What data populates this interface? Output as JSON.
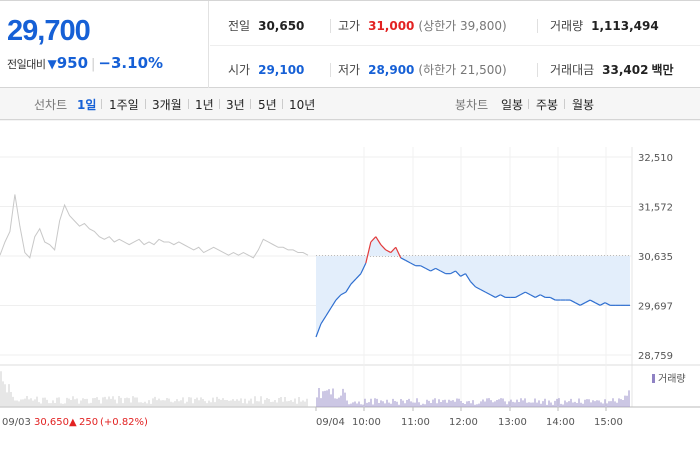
{
  "quote": {
    "price": "29,700",
    "change_label": "전일대비",
    "change_arrow": "▼",
    "change_abs": "950",
    "change_pct": "−3.10%",
    "prev_close_label": "전일",
    "prev_close": "30,650",
    "high_label": "고가",
    "high": "31,000",
    "upper_limit": "(상한가 39,800)",
    "volume_label": "거래량",
    "volume": "1,113,494",
    "open_label": "시가",
    "open": "29,100",
    "low_label": "저가",
    "low": "28,900",
    "lower_limit": "(하한가 21,500)",
    "amount_label": "거래대금",
    "amount": "33,402",
    "amount_unit": "백만"
  },
  "tabs": {
    "line_head": "선차트",
    "line": [
      "1일",
      "1주일",
      "3개월",
      "1년",
      "3년",
      "5년",
      "10년"
    ],
    "active": "1일",
    "candle_head": "봉차트",
    "candle": [
      "일봉",
      "주봉",
      "월봉"
    ]
  },
  "chart_data": {
    "type": "line",
    "y_ticks": [
      "32,510",
      "31,572",
      "30,635",
      "29,697",
      "28,759"
    ],
    "ylim": [
      28759,
      32510
    ],
    "prev_close_level": 30635,
    "x_ticks": [
      "09/04",
      "10:00",
      "11:00",
      "12:00",
      "13:00",
      "14:00",
      "15:00"
    ],
    "grid": true,
    "volume_legend": "거래량",
    "prev_day": {
      "date": "09/03",
      "close": "30,650",
      "arrow": "▲",
      "change": "250",
      "change_pct": "(+0.82%)",
      "values": [
        30650,
        30900,
        31100,
        31800,
        31200,
        30700,
        30600,
        31000,
        31150,
        30900,
        30850,
        30750,
        31300,
        31600,
        31400,
        31300,
        31200,
        31250,
        31150,
        31100,
        31000,
        30950,
        31000,
        30900,
        30950,
        30900,
        30850,
        30900,
        30950,
        30850,
        30900,
        30850,
        30950,
        30900,
        30900,
        30850,
        30900,
        30850,
        30800,
        30750,
        30800,
        30700,
        30750,
        30800,
        30750,
        30700,
        30650,
        30700,
        30650,
        30700,
        30650,
        30600,
        30750,
        30950,
        30900,
        30850,
        30800,
        30800,
        30750,
        30750,
        30700,
        30700,
        30650
      ]
    },
    "today": {
      "date": "09/04",
      "values": [
        29100,
        29350,
        29500,
        29650,
        29800,
        29900,
        29950,
        30100,
        30200,
        30300,
        30500,
        30900,
        31000,
        30850,
        30750,
        30700,
        30800,
        30600,
        30550,
        30500,
        30450,
        30450,
        30400,
        30350,
        30400,
        30350,
        30300,
        30300,
        30350,
        30250,
        30300,
        30150,
        30050,
        30000,
        29950,
        29900,
        29850,
        29900,
        29850,
        29850,
        29850,
        29900,
        29950,
        29900,
        29850,
        29900,
        29850,
        29850,
        29800,
        29800,
        29800,
        29800,
        29750,
        29700,
        29750,
        29800,
        29750,
        29700,
        29750,
        29700,
        29700,
        29700,
        29700,
        29700
      ]
    }
  }
}
